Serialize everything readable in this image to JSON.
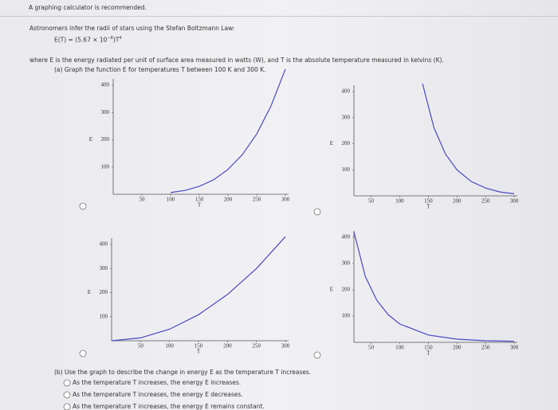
{
  "header": {
    "notice": "A graphing calculator is recommended."
  },
  "problem": {
    "intro": "Astronomers infer the radii of stars using the Stefan Boltzmann Law:",
    "formula_lhs": "E(T) = (5.67 × 10",
    "formula_exp1": "−8",
    "formula_mid": ")T",
    "formula_exp2": "4",
    "definition": "where E is the energy radiated per unit of surface area measured in watts (W), and T is the absolute temperature measured in kelvins (K).",
    "part_a": "(a) Graph the function E for temperatures T between 100 K and 300 K.",
    "part_b": "(b) Use the graph to describe the change in energy E as the temperature T increases.",
    "options": [
      "As the temperature T increases, the energy E increases.",
      "As the temperature T increases, the energy E decreases.",
      "As the temperature T increases, the energy E remains constant."
    ]
  },
  "chart_data": [
    {
      "type": "line",
      "xlabel": "T",
      "ylabel": "E",
      "color": "#4a48c0",
      "x": [
        100,
        125,
        150,
        175,
        200,
        225,
        250,
        275,
        300
      ],
      "values": [
        6,
        14,
        29,
        53,
        91,
        145,
        221,
        324,
        459
      ],
      "xlim": [
        0,
        300
      ],
      "ylim": [
        0,
        400
      ],
      "xticks": [
        50,
        100,
        150,
        200,
        250,
        300
      ],
      "yticks": [
        100,
        200,
        300,
        400
      ]
    },
    {
      "type": "line",
      "xlabel": "T",
      "ylabel": "E",
      "color": "#4a48c0",
      "x": [
        140,
        160,
        180,
        200,
        225,
        250,
        275,
        300
      ],
      "values": [
        430,
        260,
        160,
        100,
        55,
        30,
        15,
        8
      ],
      "xlim": [
        20,
        300
      ],
      "ylim": [
        0,
        400
      ],
      "xticks": [
        50,
        100,
        150,
        200,
        250,
        300
      ],
      "yticks": [
        100,
        200,
        300,
        400
      ]
    },
    {
      "type": "line",
      "xlabel": "T",
      "ylabel": "E",
      "color": "#4a48c0",
      "x": [
        0,
        50,
        100,
        150,
        200,
        250,
        300
      ],
      "values": [
        0,
        12,
        48,
        108,
        192,
        300,
        432
      ],
      "xlim": [
        0,
        300
      ],
      "ylim": [
        0,
        400
      ],
      "xticks": [
        50,
        100,
        150,
        200,
        250,
        300
      ],
      "yticks": [
        100,
        200,
        300,
        400
      ]
    },
    {
      "type": "line",
      "xlabel": "T",
      "ylabel": "E",
      "color": "#4a48c0",
      "x": [
        20,
        40,
        60,
        80,
        100,
        150,
        200,
        250,
        300
      ],
      "values": [
        420,
        250,
        160,
        105,
        70,
        28,
        12,
        6,
        4
      ],
      "xlim": [
        20,
        300
      ],
      "ylim": [
        0,
        400
      ],
      "xticks": [
        50,
        100,
        150,
        200,
        250,
        300
      ],
      "yticks": [
        100,
        200,
        300,
        400
      ]
    }
  ]
}
